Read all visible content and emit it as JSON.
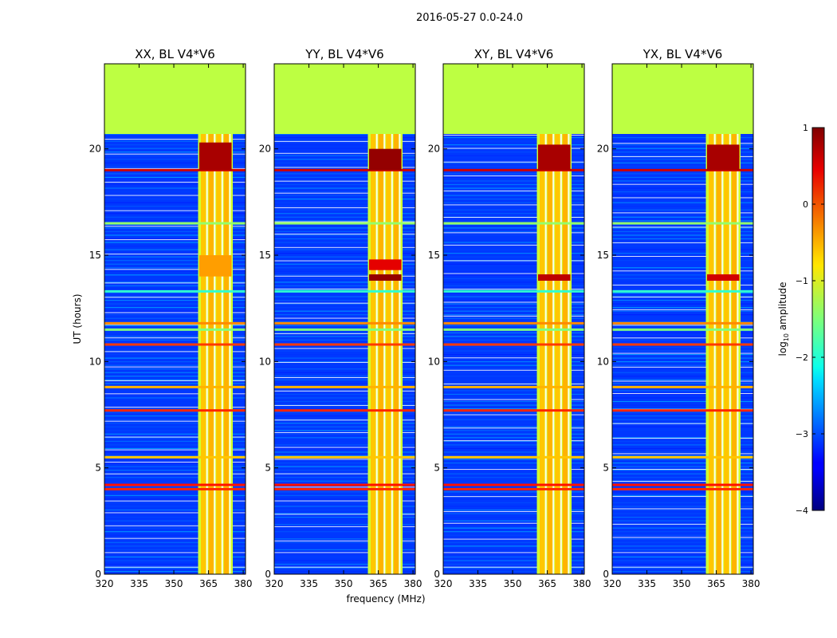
{
  "figure": {
    "suptitle": "2016-05-27 0.0-24.0"
  },
  "chart_data": {
    "type": "heatmap",
    "shared_xlabel": "frequency (MHz)",
    "shared_ylabel": "UT (hours)",
    "xlim": [
      320,
      381
    ],
    "ylim": [
      0,
      24
    ],
    "x_ticks": [
      "320",
      "335",
      "350",
      "365",
      "380"
    ],
    "x_tick_values": [
      320,
      335,
      350,
      365,
      380
    ],
    "y_ticks": [
      "0",
      "5",
      "10",
      "15",
      "20"
    ],
    "y_tick_values": [
      0,
      5,
      10,
      15,
      20
    ],
    "flagged_region": {
      "ut_start": 20.7,
      "ut_end": 24,
      "value": -1.2
    },
    "background_value": -3.1,
    "rfi_band": {
      "freq_start": 360.5,
      "freq_end": 375.5,
      "value": -1.1
    },
    "horizontal_features": [
      {
        "ut": 19.0,
        "value": 0.6
      },
      {
        "ut": 16.5,
        "value": -1.4
      },
      {
        "ut": 13.3,
        "value": -1.9
      },
      {
        "ut": 11.8,
        "value": -0.3
      },
      {
        "ut": 11.5,
        "value": -1.5
      },
      {
        "ut": 10.8,
        "value": 0.1
      },
      {
        "ut": 8.8,
        "value": -0.5
      },
      {
        "ut": 7.7,
        "value": 0.2
      },
      {
        "ut": 5.5,
        "value": -0.6
      },
      {
        "ut": 4.2,
        "value": 0.3
      },
      {
        "ut": 4.0,
        "value": 0.2
      }
    ],
    "panels": [
      {
        "title": "XX, BL V4*V6",
        "hot_spots": [
          {
            "ut_start": 19.0,
            "ut_end": 20.3,
            "value": 0.8
          },
          {
            "ut_start": 14.0,
            "ut_end": 15.0,
            "value": -0.4
          }
        ]
      },
      {
        "title": "YY, BL V4*V6",
        "hot_spots": [
          {
            "ut_start": 19.0,
            "ut_end": 20.0,
            "value": 0.9
          },
          {
            "ut_start": 14.3,
            "ut_end": 14.8,
            "value": 0.5
          },
          {
            "ut_start": 13.8,
            "ut_end": 14.1,
            "value": 0.9
          }
        ]
      },
      {
        "title": "XY, BL V4*V6",
        "hot_spots": [
          {
            "ut_start": 19.0,
            "ut_end": 20.2,
            "value": 0.8
          },
          {
            "ut_start": 13.8,
            "ut_end": 14.1,
            "value": 0.7
          }
        ]
      },
      {
        "title": "YX, BL V4*V6",
        "hot_spots": [
          {
            "ut_start": 19.0,
            "ut_end": 20.2,
            "value": 0.8
          },
          {
            "ut_start": 13.8,
            "ut_end": 14.1,
            "value": 0.6
          }
        ]
      }
    ],
    "colorbar": {
      "label": "log",
      "label_sub": "10",
      "label_rest": " amplitude",
      "min": -4,
      "max": 1,
      "ticks": [
        "1",
        "0",
        "−1",
        "−2",
        "−3",
        "−4"
      ],
      "tick_values": [
        1,
        0,
        -1,
        -2,
        -3,
        -4
      ],
      "colormap": "jet"
    }
  }
}
